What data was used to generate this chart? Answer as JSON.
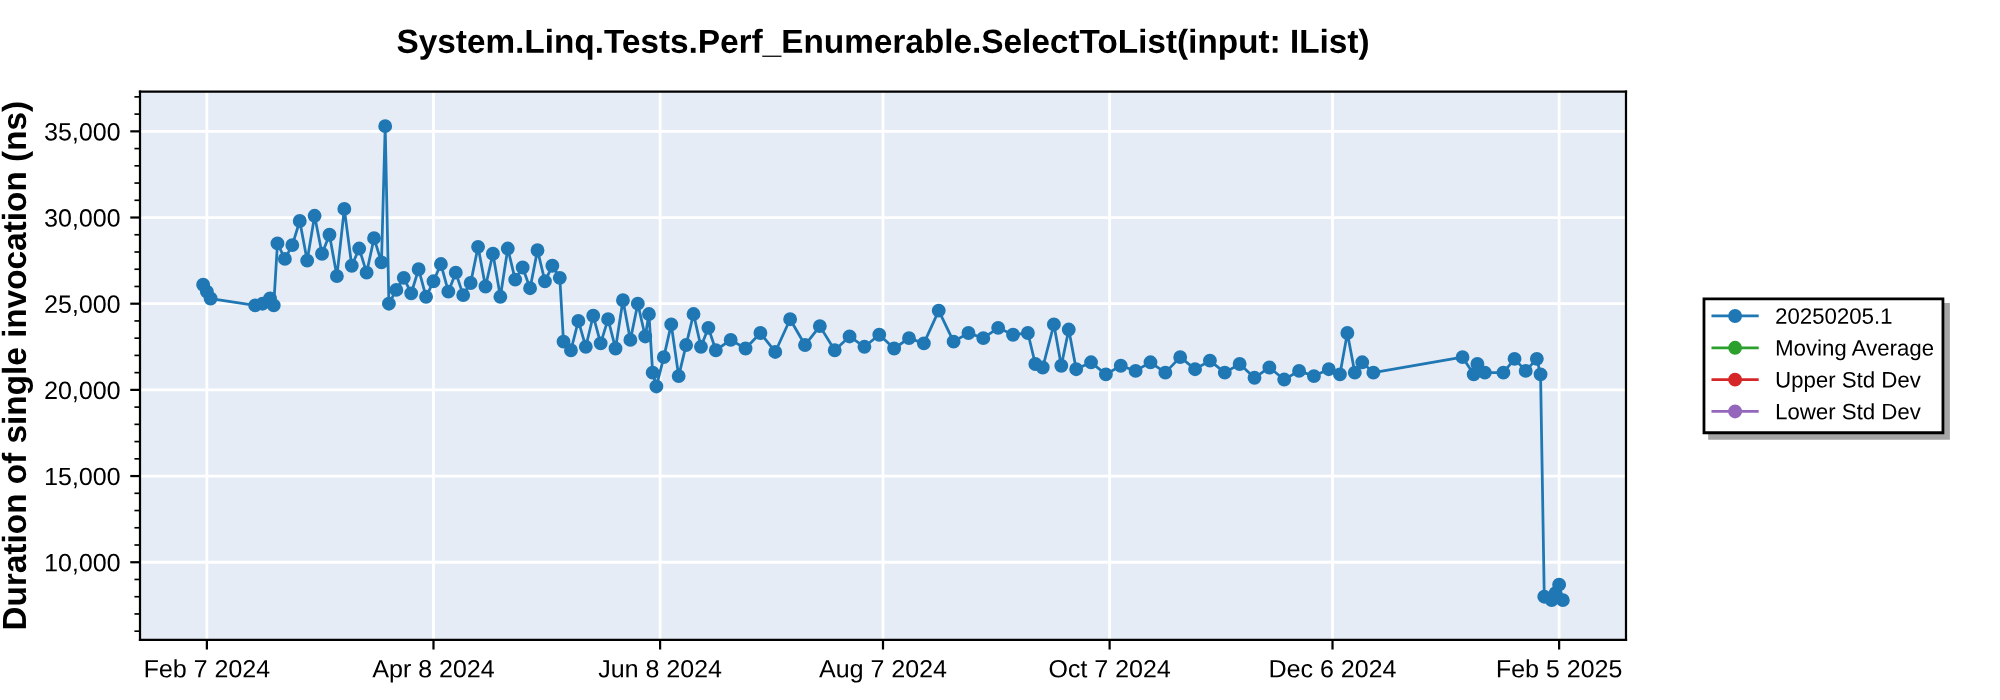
{
  "chart_data": {
    "type": "line",
    "title": "System.Linq.Tests.Perf_Enumerable.SelectToList(input: IList)",
    "ylabel": "Duration of single invocation (ns)",
    "xlim": [
      "2024-01-20",
      "2025-02-23"
    ],
    "ylim": [
      5500,
      37300
    ],
    "xticks": [
      {
        "value": "2024-02-07",
        "label": "Feb 7 2024"
      },
      {
        "value": "2024-04-08",
        "label": "Apr 8 2024"
      },
      {
        "value": "2024-06-08",
        "label": "Jun 8 2024"
      },
      {
        "value": "2024-08-07",
        "label": "Aug 7 2024"
      },
      {
        "value": "2024-10-07",
        "label": "Oct 7 2024"
      },
      {
        "value": "2024-12-06",
        "label": "Dec 6 2024"
      },
      {
        "value": "2025-02-05",
        "label": "Feb 5 2025"
      }
    ],
    "yticks": [
      {
        "value": 10000,
        "label": "10,000"
      },
      {
        "value": 15000,
        "label": "15,000"
      },
      {
        "value": 20000,
        "label": "20,000"
      },
      {
        "value": 25000,
        "label": "25,000"
      },
      {
        "value": 30000,
        "label": "30,000"
      },
      {
        "value": 35000,
        "label": "35,000"
      }
    ],
    "grid": true,
    "legend": "right",
    "marker": "circle",
    "line_style": "solid",
    "series": [
      {
        "name": "20250205.1",
        "color": "#1f77b4",
        "x": [
          "2024-02-06",
          "2024-02-07",
          "2024-02-08",
          "2024-02-20",
          "2024-02-22",
          "2024-02-24",
          "2024-02-25",
          "2024-02-26",
          "2024-02-28",
          "2024-03-01",
          "2024-03-03",
          "2024-03-05",
          "2024-03-07",
          "2024-03-09",
          "2024-03-11",
          "2024-03-13",
          "2024-03-15",
          "2024-03-17",
          "2024-03-19",
          "2024-03-21",
          "2024-03-23",
          "2024-03-25",
          "2024-03-26",
          "2024-03-27",
          "2024-03-29",
          "2024-03-31",
          "2024-04-02",
          "2024-04-04",
          "2024-04-06",
          "2024-04-08",
          "2024-04-10",
          "2024-04-12",
          "2024-04-14",
          "2024-04-16",
          "2024-04-18",
          "2024-04-20",
          "2024-04-22",
          "2024-04-24",
          "2024-04-26",
          "2024-04-28",
          "2024-04-30",
          "2024-05-02",
          "2024-05-04",
          "2024-05-06",
          "2024-05-08",
          "2024-05-10",
          "2024-05-12",
          "2024-05-13",
          "2024-05-15",
          "2024-05-17",
          "2024-05-19",
          "2024-05-21",
          "2024-05-23",
          "2024-05-25",
          "2024-05-27",
          "2024-05-29",
          "2024-05-31",
          "2024-06-02",
          "2024-06-04",
          "2024-06-05",
          "2024-06-06",
          "2024-06-07",
          "2024-06-09",
          "2024-06-11",
          "2024-06-13",
          "2024-06-15",
          "2024-06-17",
          "2024-06-19",
          "2024-06-21",
          "2024-06-23",
          "2024-06-27",
          "2024-07-01",
          "2024-07-05",
          "2024-07-09",
          "2024-07-13",
          "2024-07-17",
          "2024-07-21",
          "2024-07-25",
          "2024-07-29",
          "2024-08-02",
          "2024-08-06",
          "2024-08-10",
          "2024-08-14",
          "2024-08-18",
          "2024-08-22",
          "2024-08-26",
          "2024-08-30",
          "2024-09-03",
          "2024-09-07",
          "2024-09-11",
          "2024-09-15",
          "2024-09-17",
          "2024-09-19",
          "2024-09-22",
          "2024-09-24",
          "2024-09-26",
          "2024-09-28",
          "2024-10-02",
          "2024-10-06",
          "2024-10-10",
          "2024-10-14",
          "2024-10-18",
          "2024-10-22",
          "2024-10-26",
          "2024-10-30",
          "2024-11-03",
          "2024-11-07",
          "2024-11-11",
          "2024-11-15",
          "2024-11-19",
          "2024-11-23",
          "2024-11-27",
          "2024-12-01",
          "2024-12-05",
          "2024-12-08",
          "2024-12-10",
          "2024-12-12",
          "2024-12-14",
          "2024-12-17",
          "2025-01-10",
          "2025-01-13",
          "2025-01-14",
          "2025-01-16",
          "2025-01-21",
          "2025-01-24",
          "2025-01-27",
          "2025-01-30",
          "2025-01-31",
          "2025-02-01",
          "2025-02-03",
          "2025-02-04",
          "2025-02-05",
          "2025-02-06"
        ],
        "values": [
          26100,
          25700,
          25300,
          24900,
          25000,
          25300,
          24900,
          28500,
          27600,
          28400,
          29800,
          27500,
          30100,
          27900,
          29000,
          26600,
          30500,
          27200,
          28200,
          26800,
          28800,
          27400,
          35300,
          25000,
          25800,
          26500,
          25600,
          27000,
          25400,
          26300,
          27300,
          25700,
          26800,
          25500,
          26200,
          28300,
          26000,
          27900,
          25400,
          28200,
          26400,
          27100,
          25900,
          28100,
          26300,
          27200,
          26500,
          22800,
          22300,
          24000,
          22500,
          24300,
          22700,
          24100,
          22400,
          25200,
          22900,
          25000,
          23100,
          24400,
          21000,
          20200,
          21900,
          23800,
          20800,
          22600,
          24400,
          22500,
          23600,
          22300,
          22900,
          22400,
          23300,
          22200,
          24100,
          22600,
          23700,
          22300,
          23100,
          22500,
          23200,
          22400,
          23000,
          22700,
          24600,
          22800,
          23300,
          23000,
          23600,
          23200,
          23300,
          21500,
          21300,
          23800,
          21400,
          23500,
          21200,
          21600,
          20900,
          21400,
          21100,
          21600,
          21000,
          21900,
          21200,
          21700,
          21000,
          21500,
          20700,
          21300,
          20600,
          21100,
          20800,
          21200,
          20900,
          23300,
          21000,
          21600,
          21000,
          21900,
          20900,
          21500,
          21000,
          21000,
          21800,
          21100,
          21800,
          20900,
          8000,
          7800,
          8200,
          8700,
          7800
        ]
      },
      {
        "name": "Moving Average",
        "color": "#2ca02c"
      },
      {
        "name": "Upper Std Dev",
        "color": "#d62728"
      },
      {
        "name": "Lower Std Dev",
        "color": "#9467bd"
      }
    ]
  }
}
